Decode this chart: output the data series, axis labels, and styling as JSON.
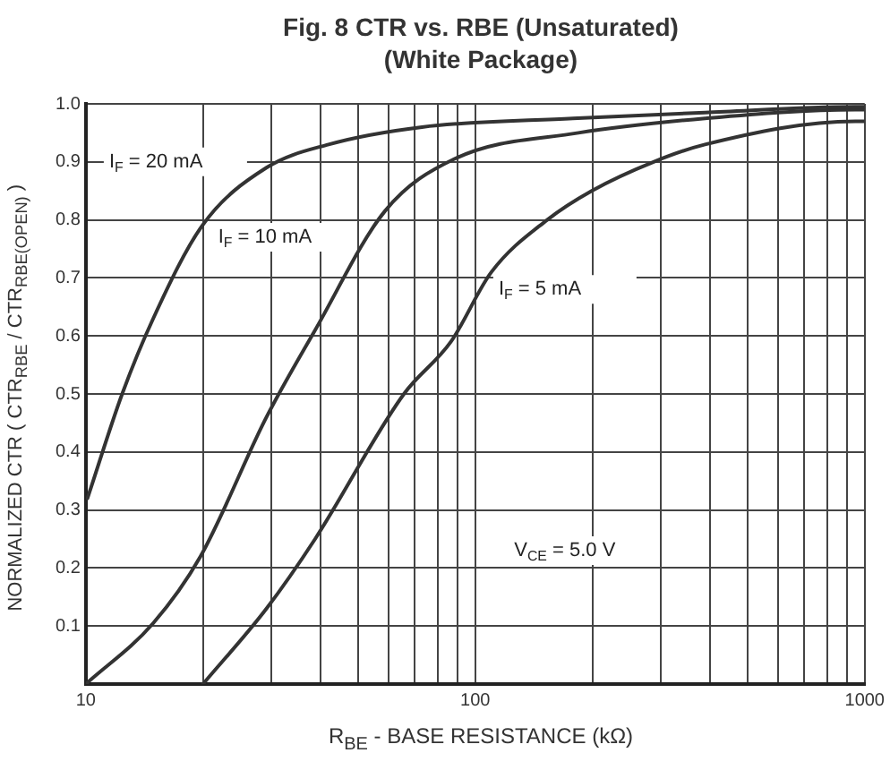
{
  "chart_data": {
    "type": "line",
    "title": "Fig. 8  CTR vs. RBE (Unsaturated)",
    "subtitle": "(White Package)",
    "xlabel": "R$_{BE}$ - BASE RESISTANCE (kΩ)",
    "ylabel": "NORMALIZED CTR ( CTR$_{RBE}$ / CTR$_{RBE(OPEN)}$ )",
    "log": "x",
    "xlim": [
      10,
      1000
    ],
    "ylim": [
      0,
      1
    ],
    "xticks": [
      10,
      {
        "value": 20,
        "label": null
      },
      {
        "value": 30,
        "label": null
      },
      {
        "value": 40,
        "label": null
      },
      {
        "value": 50,
        "label": null
      },
      {
        "value": 60,
        "label": null
      },
      {
        "value": 70,
        "label": null
      },
      {
        "value": 80,
        "label": null
      },
      {
        "value": 90,
        "label": null
      },
      100,
      {
        "value": 200,
        "label": null
      },
      {
        "value": 300,
        "label": null
      },
      {
        "value": 400,
        "label": null
      },
      {
        "value": 500,
        "label": null
      },
      {
        "value": 600,
        "label": null
      },
      {
        "value": 700,
        "label": null
      },
      {
        "value": 800,
        "label": null
      },
      {
        "value": 900,
        "label": null
      },
      1000
    ],
    "yticks": [
      {
        "value": 0,
        "label": null
      },
      0.1,
      0.2,
      0.3,
      0.4,
      0.5,
      0.6,
      0.7,
      0.8,
      0.9,
      {
        "value": 1,
        "label": "1.0"
      }
    ],
    "grid": true,
    "legend": false,
    "marker": "none",
    "line_style": "solid",
    "series": [
      {
        "color": "#333333",
        "x": [
          10.1,
          12.4,
          14.9,
          19.9,
          29.1,
          42,
          73,
          178,
          389,
          946,
          1000
        ],
        "values": [
          0.32,
          0.5,
          0.63,
          0.79,
          0.89,
          0.93,
          0.96,
          0.975,
          0.985,
          0.995,
          0.995
        ]
      },
      {
        "color": "#333333",
        "x": [
          10,
          14.9,
          19.7,
          29.1,
          38.8,
          58.6,
          88.4,
          184,
          389,
          946,
          1000
        ],
        "values": [
          0,
          0.105,
          0.22,
          0.46,
          0.61,
          0.815,
          0.905,
          0.95,
          0.975,
          0.99,
          0.99
        ]
      },
      {
        "color": "#333333",
        "x": [
          20,
          29.1,
          38.8,
          65.6,
          86.6,
          110,
          153,
          199,
          287,
          389,
          946,
          1000
        ],
        "values": [
          0,
          0.13,
          0.25,
          0.5,
          0.59,
          0.71,
          0.8,
          0.85,
          0.9,
          0.93,
          0.97,
          0.97
        ]
      }
    ],
    "annotations": [
      "I$_{F}$ = 20 mA",
      "I$_{F}$ = 10 mA",
      "I$_{F}$ = 5 mA",
      "V$_{CE}$ = 5.0 V"
    ]
  }
}
